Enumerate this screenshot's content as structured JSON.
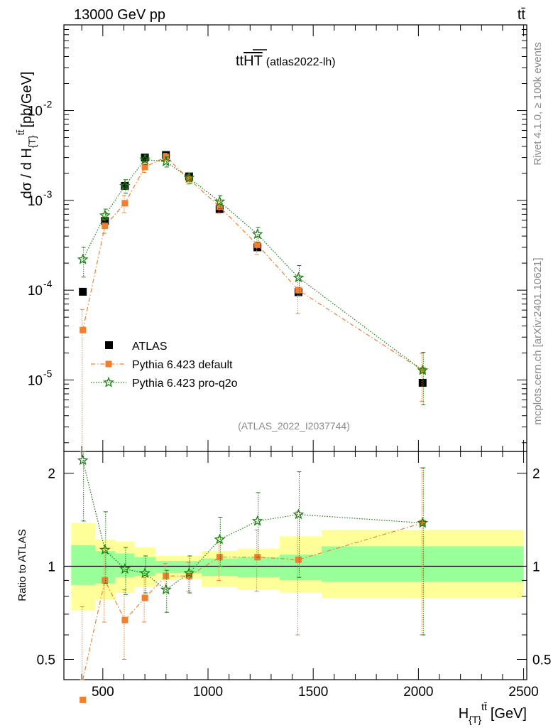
{
  "header": {
    "energy_label": "13000 GeV pp",
    "process_label": "tt̄"
  },
  "side_labels": {
    "rivet": "Rivet 4.1.0, ≥ 100k events",
    "source": "mcplots.cern.ch [arXiv:2401.10621]"
  },
  "plot_title": {
    "main": "tt",
    "overlined": "HT",
    "suffix": "(atlas2022-lh)"
  },
  "analysis_id": "(ATLAS_2022_I2037744)",
  "upper_axis": {
    "ylabel_main": "dσ / d H",
    "ylabel_sub": "{T}",
    "ylabel_sup": "tt̄",
    "ylabel_unit": "[pb/GeV]"
  },
  "lower_axis": {
    "ylabel": "Ratio to ATLAS",
    "xlabel_main": "H",
    "xlabel_sub": "{T}",
    "xlabel_sup": "tt̄",
    "xlabel_unit": "[GeV]"
  },
  "legend": {
    "atlas": "ATLAS",
    "default": "Pythia 6.423 default",
    "proq2o": "Pythia 6.423 pro-q2o"
  },
  "colors": {
    "data": "#000000",
    "default": "#f08030",
    "proq2o": "#1a8010",
    "band_inner": "#99ff99",
    "band_outer": "#ffff99"
  },
  "chart_data": {
    "type": "scatter",
    "x_range": [
      315,
      2515
    ],
    "upper_ylim": [
      1.6e-06,
      0.09
    ],
    "upper_yscale": "log",
    "ratio_ylim": [
      0.43,
      2.35
    ],
    "ratio_yscale": "log",
    "x_ticks": [
      "500",
      "1000",
      "1500",
      "2000",
      "2500"
    ],
    "upper_y_ticks": [
      {
        "base": "10",
        "exp": "-2",
        "value": 0.01
      },
      {
        "base": "10",
        "exp": "-3",
        "value": 0.001
      },
      {
        "base": "10",
        "exp": "-4",
        "value": 0.0001
      },
      {
        "base": "10",
        "exp": "-5",
        "value": 1e-05
      }
    ],
    "ratio_y_ticks": [
      {
        "label": "0.5",
        "value": 0.5
      },
      {
        "label": "1",
        "value": 1
      },
      {
        "label": "2",
        "value": 2
      }
    ],
    "bins": [
      [
        350,
        465
      ],
      [
        465,
        560
      ],
      [
        560,
        650
      ],
      [
        650,
        750
      ],
      [
        750,
        850
      ],
      [
        850,
        970
      ],
      [
        970,
        1140
      ],
      [
        1140,
        1340
      ],
      [
        1340,
        1540
      ],
      [
        1540,
        2500
      ]
    ],
    "x": [
      405,
      510,
      605,
      700,
      800,
      910,
      1055,
      1235,
      1430,
      2020
    ],
    "atlas": [
      9.6e-05,
      0.00059,
      0.00145,
      0.003,
      0.0032,
      0.00185,
      0.0008,
      0.0003,
      9.5e-05,
      9.3e-06
    ],
    "default": [
      3.6e-05,
      0.00052,
      0.00093,
      0.00235,
      0.00305,
      0.00172,
      0.00085,
      0.00032,
      0.0001,
      1.28e-05
    ],
    "default_err_lo": [
      3.5e-05,
      9e-05,
      0.0002,
      0.0003,
      0.0003,
      0.0002,
      0.00013,
      7e-05,
      4.5e-05,
      7e-06
    ],
    "default_err_hi": [
      2.5e-05,
      9e-05,
      0.0002,
      0.0003,
      0.0003,
      0.0002,
      0.00013,
      7e-05,
      4.5e-05,
      7e-06
    ],
    "proq2o": [
      0.00022,
      0.00068,
      0.00145,
      0.00285,
      0.0027,
      0.00178,
      0.00097,
      0.00042,
      0.000138,
      1.28e-05
    ],
    "proq2o_err_lo": [
      8e-05,
      0.00012,
      0.00025,
      0.00035,
      0.00035,
      0.00025,
      0.00016,
      8e-05,
      5e-05,
      7.5e-06
    ],
    "proq2o_err_hi": [
      8e-05,
      0.00012,
      0.00025,
      0.00035,
      0.00035,
      0.00025,
      0.00016,
      8e-05,
      5e-05,
      7.5e-06
    ],
    "ratio_default": [
      0.37,
      0.9,
      0.67,
      0.79,
      0.93,
      0.93,
      1.07,
      1.07,
      1.05,
      1.38
    ],
    "ratio_default_err_lo": [
      0.37,
      0.24,
      0.17,
      0.13,
      0.09,
      0.1,
      0.17,
      0.24,
      0.45,
      0.78
    ],
    "ratio_default_err_hi": [
      0.37,
      0.24,
      0.17,
      0.13,
      0.09,
      0.1,
      0.17,
      0.24,
      0.45,
      0.7
    ],
    "ratio_proq2o": [
      2.2,
      1.13,
      0.98,
      0.95,
      0.84,
      0.95,
      1.22,
      1.4,
      1.47,
      1.38
    ],
    "ratio_proq2o_err_lo": [
      0.8,
      0.25,
      0.17,
      0.13,
      0.13,
      0.13,
      0.22,
      0.33,
      0.55,
      0.78
    ],
    "ratio_proq2o_err_hi": [
      0.25,
      0.37,
      0.17,
      0.13,
      0.13,
      0.13,
      0.22,
      0.33,
      0.55,
      0.7
    ],
    "band_inner": [
      [
        0.87,
        1.17
      ],
      [
        0.88,
        1.12
      ],
      [
        0.92,
        1.1
      ],
      [
        0.93,
        1.07
      ],
      [
        0.95,
        1.04
      ],
      [
        0.95,
        1.04
      ],
      [
        0.93,
        1.06
      ],
      [
        0.92,
        1.07
      ],
      [
        0.9,
        1.09
      ],
      [
        0.89,
        1.16
      ]
    ],
    "band_outer": [
      [
        0.72,
        1.38
      ],
      [
        0.78,
        1.22
      ],
      [
        0.82,
        1.2
      ],
      [
        0.86,
        1.15
      ],
      [
        0.9,
        1.08
      ],
      [
        0.91,
        1.08
      ],
      [
        0.86,
        1.12
      ],
      [
        0.84,
        1.14
      ],
      [
        0.82,
        1.25
      ],
      [
        0.79,
        1.31
      ]
    ]
  }
}
